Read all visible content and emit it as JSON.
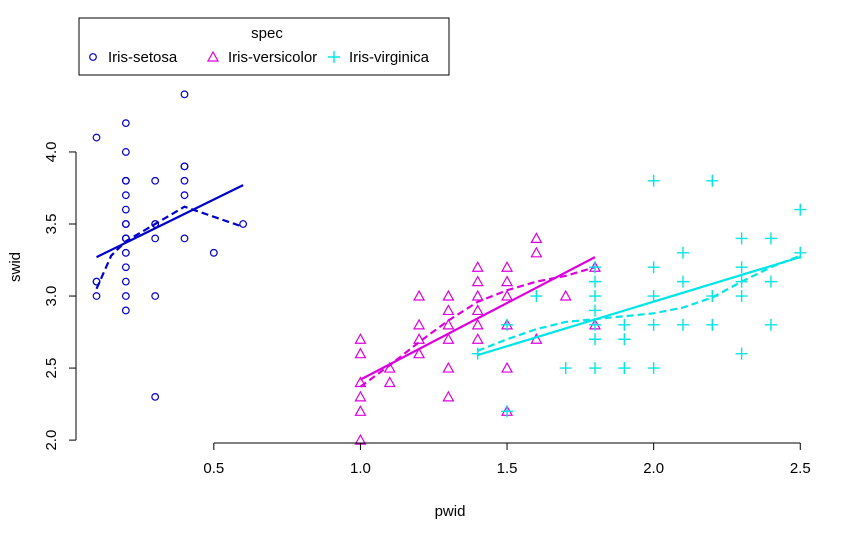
{
  "chart_data": {
    "type": "scatter",
    "title": "",
    "xlabel": "pwid",
    "ylabel": "swid",
    "xlim": [
      0.03,
      2.54
    ],
    "ylim": [
      1.98,
      4.43
    ],
    "x_ticks": [
      0.5,
      1.0,
      1.5,
      2.0,
      2.5
    ],
    "x_tick_labels": [
      "0.5",
      "1.0",
      "1.5",
      "2.0",
      "2.5"
    ],
    "y_ticks": [
      2.0,
      2.5,
      3.0,
      3.5,
      4.0
    ],
    "y_tick_labels": [
      "2.0",
      "2.5",
      "3.0",
      "3.5",
      "4.0"
    ],
    "grid": false,
    "legend": {
      "title": "spec",
      "placement": "top-left"
    },
    "series": [
      {
        "name": "Iris-setosa",
        "color": "#0000cc",
        "marker": "circle",
        "x": [
          0.1,
          0.1,
          0.1,
          0.1,
          0.2,
          0.2,
          0.2,
          0.2,
          0.2,
          0.2,
          0.2,
          0.2,
          0.2,
          0.2,
          0.2,
          0.2,
          0.2,
          0.2,
          0.2,
          0.3,
          0.3,
          0.3,
          0.3,
          0.3,
          0.3,
          0.4,
          0.4,
          0.4,
          0.4,
          0.4,
          0.4,
          0.5,
          0.6
        ],
        "y": [
          4.1,
          3.1,
          3.0,
          3.1,
          4.2,
          4.0,
          3.8,
          3.7,
          3.6,
          3.5,
          3.4,
          3.4,
          3.3,
          3.2,
          3.1,
          3.0,
          2.9,
          3.8,
          3.5,
          3.8,
          3.5,
          3.4,
          3.0,
          2.3,
          3.5,
          4.4,
          3.9,
          3.8,
          3.7,
          3.4,
          3.9,
          3.3,
          3.5
        ],
        "fit_line": {
          "x": [
            0.1,
            0.6
          ],
          "y": [
            3.27,
            3.77
          ]
        },
        "smooth_line": {
          "x": [
            0.1,
            0.15,
            0.2,
            0.3,
            0.4,
            0.5,
            0.6
          ],
          "y": [
            3.05,
            3.28,
            3.38,
            3.5,
            3.62,
            3.55,
            3.48
          ]
        }
      },
      {
        "name": "Iris-versicolor",
        "color": "#dd00dd",
        "marker": "triangle",
        "x": [
          1.0,
          1.0,
          1.0,
          1.0,
          1.0,
          1.0,
          1.1,
          1.1,
          1.2,
          1.2,
          1.2,
          1.2,
          1.3,
          1.3,
          1.3,
          1.3,
          1.3,
          1.3,
          1.4,
          1.4,
          1.4,
          1.4,
          1.4,
          1.4,
          1.5,
          1.5,
          1.5,
          1.5,
          1.5,
          1.5,
          1.6,
          1.6,
          1.6,
          1.7,
          1.8,
          1.8
        ],
        "y": [
          2.7,
          2.6,
          2.4,
          2.3,
          2.2,
          2.0,
          2.5,
          2.4,
          3.0,
          2.8,
          2.7,
          2.6,
          3.0,
          2.9,
          2.8,
          2.7,
          2.5,
          2.3,
          3.2,
          3.1,
          3.0,
          2.9,
          2.8,
          2.7,
          3.2,
          3.1,
          3.0,
          2.8,
          2.5,
          2.2,
          3.4,
          3.3,
          2.7,
          3.0,
          3.2,
          2.8
        ],
        "fit_line": {
          "x": [
            1.0,
            1.8
          ],
          "y": [
            2.42,
            3.27
          ]
        },
        "smooth_line": {
          "x": [
            1.0,
            1.1,
            1.2,
            1.3,
            1.4,
            1.5,
            1.6,
            1.7,
            1.8
          ],
          "y": [
            2.37,
            2.52,
            2.68,
            2.83,
            2.96,
            3.04,
            3.1,
            3.14,
            3.2
          ]
        }
      },
      {
        "name": "Iris-virginica",
        "color": "#00e5e5",
        "marker": "plus",
        "x": [
          1.4,
          1.5,
          1.5,
          1.6,
          1.7,
          1.8,
          1.8,
          1.8,
          1.8,
          1.8,
          1.8,
          1.8,
          1.9,
          1.9,
          1.9,
          2.0,
          2.0,
          2.0,
          2.0,
          2.0,
          2.1,
          2.1,
          2.1,
          2.2,
          2.2,
          2.2,
          2.3,
          2.3,
          2.3,
          2.3,
          2.3,
          2.4,
          2.4,
          2.4,
          2.5,
          2.5
        ],
        "y": [
          2.6,
          2.8,
          2.2,
          3.0,
          2.5,
          3.2,
          3.1,
          3.0,
          2.9,
          2.8,
          2.7,
          2.5,
          2.8,
          2.7,
          2.5,
          3.8,
          3.2,
          3.0,
          2.8,
          2.5,
          3.3,
          3.1,
          2.8,
          3.8,
          3.0,
          2.8,
          3.4,
          3.2,
          3.1,
          3.0,
          2.6,
          3.4,
          3.1,
          2.8,
          3.6,
          3.3
        ],
        "fit_line": {
          "x": [
            1.4,
            2.5
          ],
          "y": [
            2.59,
            3.27
          ]
        },
        "smooth_line": {
          "x": [
            1.4,
            1.5,
            1.6,
            1.7,
            1.8,
            1.9,
            2.0,
            2.1,
            2.2,
            2.3,
            2.4,
            2.5
          ],
          "y": [
            2.62,
            2.7,
            2.77,
            2.82,
            2.84,
            2.86,
            2.88,
            2.92,
            2.99,
            3.1,
            3.2,
            3.28
          ]
        }
      }
    ]
  }
}
